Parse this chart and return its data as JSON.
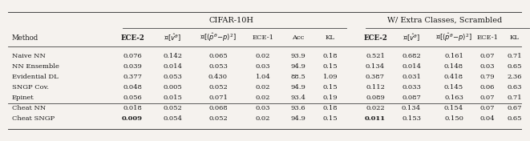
{
  "title_left": "CIFAR-10H",
  "title_right": "W/ Extra Classes, Scrambled",
  "method_col_header": "Method",
  "col_headers_left": [
    "ECE-2",
    "E[$\\hat{v}^\\theta$]",
    "E[$(\\hat{p}^\\theta-p)^2$]",
    "ECE-1",
    "Acc",
    "KL"
  ],
  "col_headers_right": [
    "ECE-2",
    "E[$\\hat{v}^\\theta$]",
    "E[$(\\hat{p}^\\theta-p)^2$]",
    "ECE-1",
    "KL"
  ],
  "rows": [
    {
      "method": "Naive NN",
      "left": [
        "0.076",
        "0.142",
        "0.065",
        "0.02",
        "93.9",
        "0.18"
      ],
      "right": [
        "0.521",
        "0.682",
        "0.161",
        "0.07",
        "0.71"
      ],
      "bold_left": [],
      "bold_right": []
    },
    {
      "method": "NN Ensemble",
      "left": [
        "0.039",
        "0.014",
        "0.053",
        "0.03",
        "94.9",
        "0.15"
      ],
      "right": [
        "0.134",
        "0.014",
        "0.148",
        "0.03",
        "0.65"
      ],
      "bold_left": [],
      "bold_right": []
    },
    {
      "method": "Evidential DL",
      "left": [
        "0.377",
        "0.053",
        "0.430",
        "1.04",
        "88.5",
        "1.09"
      ],
      "right": [
        "0.387",
        "0.031",
        "0.418",
        "0.79",
        "2.36"
      ],
      "bold_left": [],
      "bold_right": []
    },
    {
      "method": "SNGP Cov.",
      "left": [
        "0.048",
        "0.005",
        "0.052",
        "0.02",
        "94.9",
        "0.15"
      ],
      "right": [
        "0.112",
        "0.033",
        "0.145",
        "0.06",
        "0.63"
      ],
      "bold_left": [],
      "bold_right": []
    },
    {
      "method": "Epinet",
      "left": [
        "0.056",
        "0.015",
        "0.071",
        "0.02",
        "93.4",
        "0.19"
      ],
      "right": [
        "0.089",
        "0.087",
        "0.163",
        "0.07",
        "0.71"
      ],
      "bold_left": [],
      "bold_right": []
    },
    {
      "method": "Cheat NN",
      "left": [
        "0.018",
        "0.052",
        "0.068",
        "0.03",
        "93.6",
        "0.18"
      ],
      "right": [
        "0.022",
        "0.134",
        "0.154",
        "0.07",
        "0.67"
      ],
      "bold_left": [],
      "bold_right": []
    },
    {
      "method": "Cheat SNGP",
      "left": [
        "0.009",
        "0.054",
        "0.052",
        "0.02",
        "94.9",
        "0.15"
      ],
      "right": [
        "0.011",
        "0.153",
        "0.150",
        "0.04",
        "0.65"
      ],
      "bold_left": [
        0
      ],
      "bold_right": [
        0
      ]
    }
  ],
  "bg_color": "#f5f2ee",
  "text_color": "#1a1a1a",
  "line_color": "#444444"
}
